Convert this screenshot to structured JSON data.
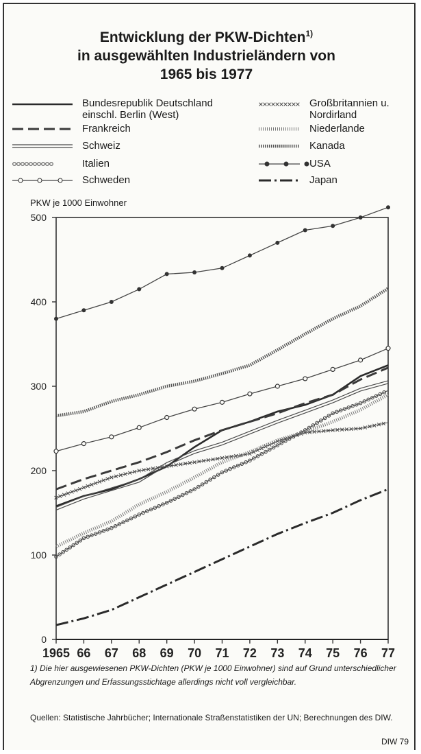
{
  "chart_data": {
    "type": "line",
    "title": [
      "Entwicklung der PKW-Dichten",
      "in ausgewählten Industrieländern von",
      "1965 bis 1977"
    ],
    "title_footnote_marker": "1)",
    "ylabel": "PKW je 1000 Einwohner",
    "x": [
      "1965",
      "66",
      "67",
      "68",
      "69",
      "70",
      "71",
      "72",
      "73",
      "74",
      "75",
      "76",
      "77"
    ],
    "ylim": [
      0,
      500
    ],
    "yticks": [
      0,
      100,
      200,
      300,
      400,
      500
    ],
    "grid": false,
    "series": [
      {
        "name": "Bundesrepublik Deutschland einschl. Berlin (West)",
        "style": "solid",
        "values": [
          158,
          170,
          178,
          190,
          205,
          228,
          248,
          258,
          270,
          278,
          290,
          312,
          325
        ]
      },
      {
        "name": "Frankreich",
        "style": "dashed",
        "values": [
          178,
          190,
          200,
          210,
          222,
          236,
          248,
          258,
          268,
          280,
          290,
          308,
          322
        ]
      },
      {
        "name": "Schweiz",
        "style": "double",
        "values": [
          155,
          168,
          178,
          188,
          208,
          222,
          232,
          245,
          258,
          270,
          282,
          296,
          305
        ]
      },
      {
        "name": "Italien",
        "style": "circles",
        "values": [
          98,
          120,
          132,
          148,
          162,
          178,
          198,
          212,
          230,
          248,
          268,
          280,
          295
        ]
      },
      {
        "name": "Schweden",
        "style": "open-circles",
        "values": [
          223,
          232,
          240,
          251,
          263,
          273,
          281,
          291,
          300,
          309,
          320,
          331,
          345
        ]
      },
      {
        "name": "Großbritannien u. Nordirland",
        "style": "crosses",
        "values": [
          168,
          180,
          192,
          200,
          205,
          210,
          215,
          220,
          235,
          245,
          248,
          250,
          257
        ]
      },
      {
        "name": "Niederlande",
        "style": "ticks",
        "values": [
          110,
          126,
          140,
          160,
          175,
          192,
          210,
          222,
          236,
          246,
          258,
          272,
          290
        ]
      },
      {
        "name": "Kanada",
        "style": "wavy",
        "values": [
          265,
          270,
          282,
          290,
          300,
          306,
          315,
          325,
          343,
          362,
          380,
          395,
          416
        ]
      },
      {
        "name": "USA",
        "style": "dots",
        "values": [
          380,
          390,
          400,
          415,
          433,
          435,
          440,
          455,
          470,
          485,
          490,
          500,
          512
        ]
      },
      {
        "name": "Japan",
        "style": "dash-dot",
        "values": [
          17,
          25,
          35,
          50,
          65,
          80,
          95,
          110,
          125,
          138,
          150,
          165,
          178
        ]
      }
    ]
  },
  "footnote": "1) Die hier ausgewiesenen PKW-Dichten (PKW je 1000 Einwohner) sind auf Grund unterschiedlicher Abgrenzungen und Erfassungsstichtage allerdings nicht voll vergleichbar.",
  "sources": "Quellen: Statistische Jahrbücher; Internationale Straßenstatistiken der UN; Berechnungen des DIW.",
  "credit": "DIW 79"
}
